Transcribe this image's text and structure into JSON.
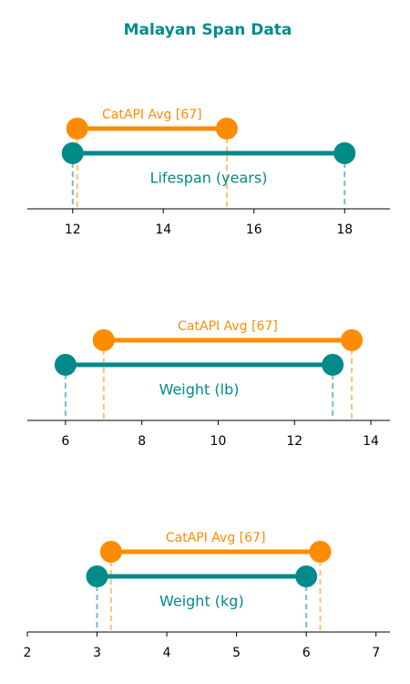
{
  "title": "Malayan Span Data",
  "chart_data": [
    {
      "type": "dumbbell",
      "xlim": [
        11,
        19
      ],
      "xticks": [
        12,
        14,
        16,
        18
      ],
      "series": [
        {
          "name": "Lifespan (years)",
          "color": "#008b8b",
          "values": [
            12,
            18
          ]
        },
        {
          "name": "CatAPI Avg [67]",
          "color": "#ff8c00",
          "values": [
            12.1,
            15.4
          ]
        }
      ]
    },
    {
      "type": "dumbbell",
      "xlim": [
        5,
        14.5
      ],
      "xticks": [
        6,
        8,
        10,
        12,
        14
      ],
      "series": [
        {
          "name": "Weight (lb)",
          "color": "#008b8b",
          "values": [
            6,
            13
          ]
        },
        {
          "name": "CatAPI Avg [67]",
          "color": "#ff8c00",
          "values": [
            7,
            13.5
          ]
        }
      ]
    },
    {
      "type": "dumbbell",
      "xlim": [
        2,
        7.2
      ],
      "xticks": [
        2,
        3,
        4,
        5,
        6,
        7
      ],
      "series": [
        {
          "name": "Weight (kg)",
          "color": "#008b8b",
          "values": [
            3,
            6
          ]
        },
        {
          "name": "CatAPI Avg [67]",
          "color": "#ff8c00",
          "values": [
            3.2,
            6.2
          ]
        }
      ]
    }
  ]
}
